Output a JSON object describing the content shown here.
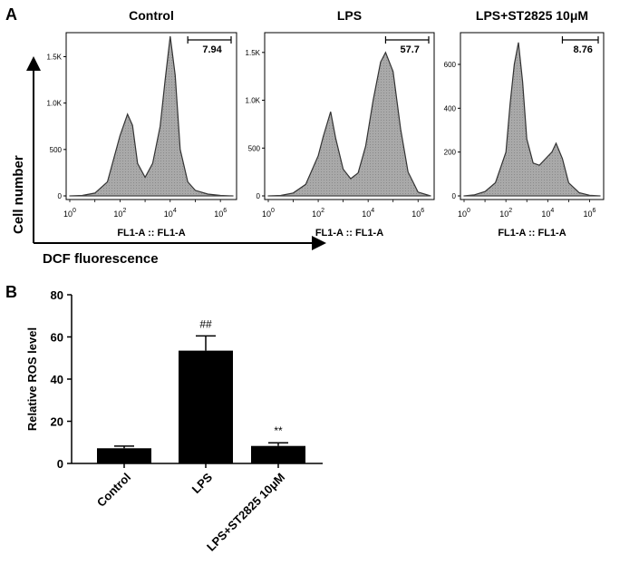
{
  "panel_a": {
    "label": "A",
    "y_axis_title": "Cell number",
    "x_axis_title": "DCF  fluorescence"
  },
  "panel_b": {
    "label": "B"
  },
  "chart_data": [
    {
      "type": "area",
      "panel": "A",
      "title": "Control",
      "xlabel": "FL1-A :: FL1-A",
      "x_ticks": [
        "10^0",
        "10^2",
        "10^4",
        "10^6"
      ],
      "y_ticks": [
        "0",
        "500",
        "1.0K",
        "1.5K"
      ],
      "ylim": [
        0,
        1700
      ],
      "x_scale": "log",
      "gate_percent": "7.94",
      "series": [
        {
          "x": [
            0.0,
            0.5,
            1.0,
            1.5,
            2.0,
            2.3,
            2.5,
            2.7,
            3.0,
            3.3,
            3.6,
            3.8,
            4.0,
            4.2,
            4.4,
            4.7,
            5.0,
            5.5,
            6.0,
            6.5
          ],
          "values": [
            0,
            5,
            30,
            150,
            650,
            880,
            760,
            350,
            200,
            350,
            750,
            1250,
            1720,
            1300,
            500,
            150,
            60,
            20,
            5,
            0
          ]
        }
      ]
    },
    {
      "type": "area",
      "panel": "A",
      "title": "LPS",
      "xlabel": "FL1-A :: FL1-A",
      "x_ticks": [
        "10^0",
        "10^2",
        "10^4",
        "10^6"
      ],
      "y_ticks": [
        "0",
        "500",
        "1.0K",
        "1.5K"
      ],
      "ylim": [
        0,
        1650
      ],
      "x_scale": "log",
      "gate_percent": "57.7",
      "series": [
        {
          "x": [
            0.0,
            0.5,
            1.0,
            1.5,
            2.0,
            2.2,
            2.5,
            2.7,
            3.0,
            3.3,
            3.6,
            3.9,
            4.2,
            4.5,
            4.7,
            5.0,
            5.3,
            5.6,
            6.0,
            6.5
          ],
          "values": [
            0,
            5,
            30,
            120,
            420,
            620,
            880,
            600,
            280,
            180,
            240,
            520,
            1000,
            1400,
            1500,
            1300,
            700,
            250,
            40,
            0
          ]
        }
      ]
    },
    {
      "type": "area",
      "panel": "A",
      "title": "LPS+ST2825 10μM",
      "xlabel": "FL1-A :: FL1-A",
      "x_ticks": [
        "10^0",
        "10^2",
        "10^4",
        "10^6"
      ],
      "y_ticks": [
        "0",
        "200",
        "400",
        "600"
      ],
      "ylim": [
        0,
        720
      ],
      "x_scale": "log",
      "gate_percent": "8.76",
      "series": [
        {
          "x": [
            0.0,
            0.5,
            1.0,
            1.5,
            2.0,
            2.2,
            2.4,
            2.6,
            2.8,
            3.0,
            3.3,
            3.6,
            3.9,
            4.2,
            4.4,
            4.7,
            5.0,
            5.5,
            6.0,
            6.5
          ],
          "values": [
            0,
            5,
            20,
            60,
            200,
            420,
            600,
            700,
            520,
            260,
            150,
            140,
            170,
            200,
            240,
            170,
            60,
            15,
            3,
            0
          ]
        }
      ]
    },
    {
      "type": "bar",
      "panel": "B",
      "title": "",
      "categories": [
        "Control",
        "LPS",
        "LPS+ST2825 10μM"
      ],
      "values": [
        7.2,
        53.5,
        8.3
      ],
      "errors": [
        1.0,
        7.0,
        1.5
      ],
      "annotations": [
        "",
        "##",
        "**"
      ],
      "xlabel": "",
      "ylabel": "Relative ROS level",
      "y_ticks": [
        "0",
        "20",
        "40",
        "60",
        "80"
      ],
      "ylim": [
        0,
        80
      ]
    }
  ]
}
